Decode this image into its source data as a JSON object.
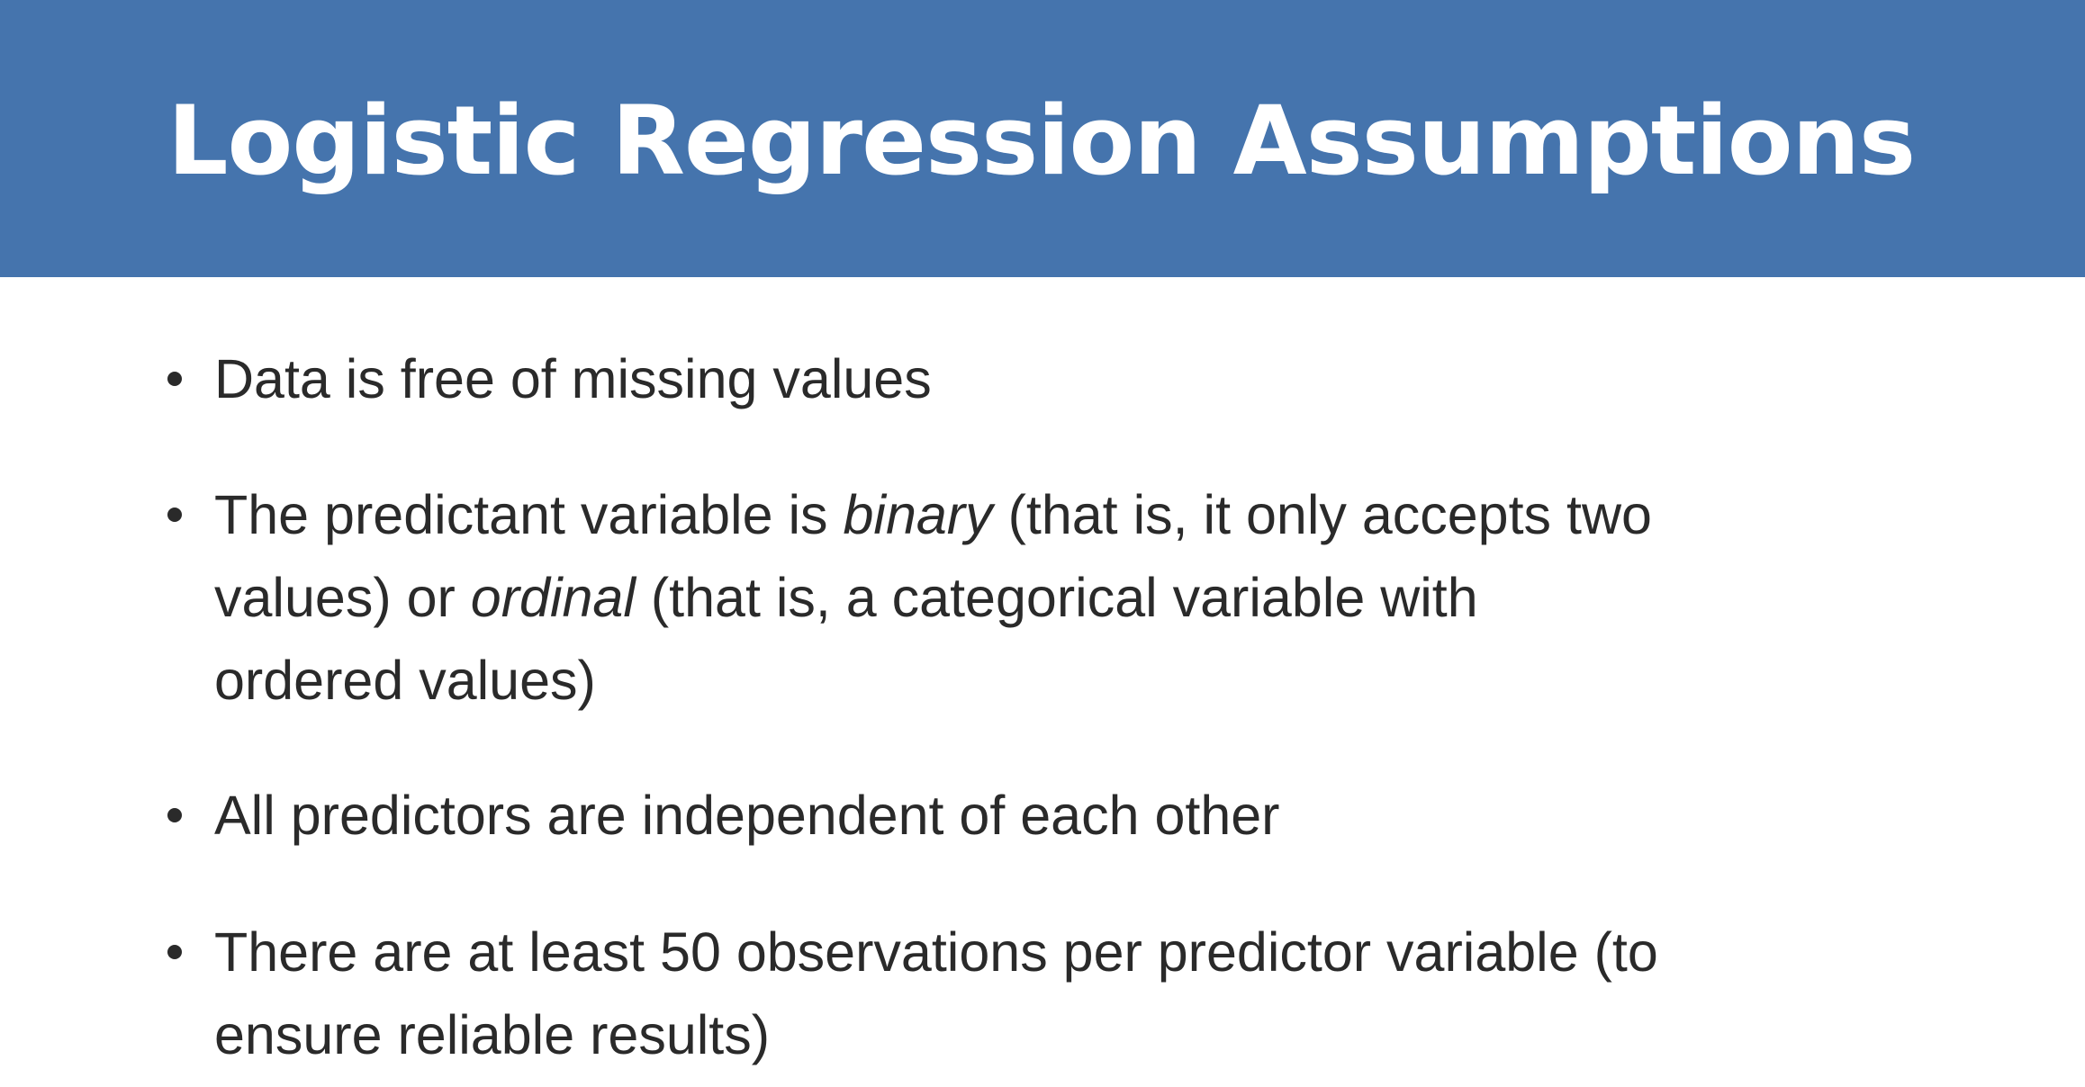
{
  "slide": {
    "title": "Logistic Regression Assumptions",
    "bullets": [
      {
        "lines": [
          "Data is free of missing values"
        ]
      },
      {
        "line1_a": "The predictant variable is ",
        "line1_em": "binary",
        "line1_b": " (that is, it only accepts two",
        "line2_a": "values) or ",
        "line2_em": "ordinal",
        "line2_b": " (that is, a categorical variable with",
        "line3": "ordered values)"
      },
      {
        "lines": [
          "All predictors are independent of each other"
        ]
      },
      {
        "lines": [
          "There are at least 50 observations per predictor variable (to",
          "ensure reliable results)"
        ]
      }
    ]
  },
  "colors": {
    "header_background": "#4574ad",
    "title_text": "#ffffff",
    "body_text": "#2a2a2a"
  },
  "icons": {
    "bullet": "bullet-dot-icon"
  }
}
